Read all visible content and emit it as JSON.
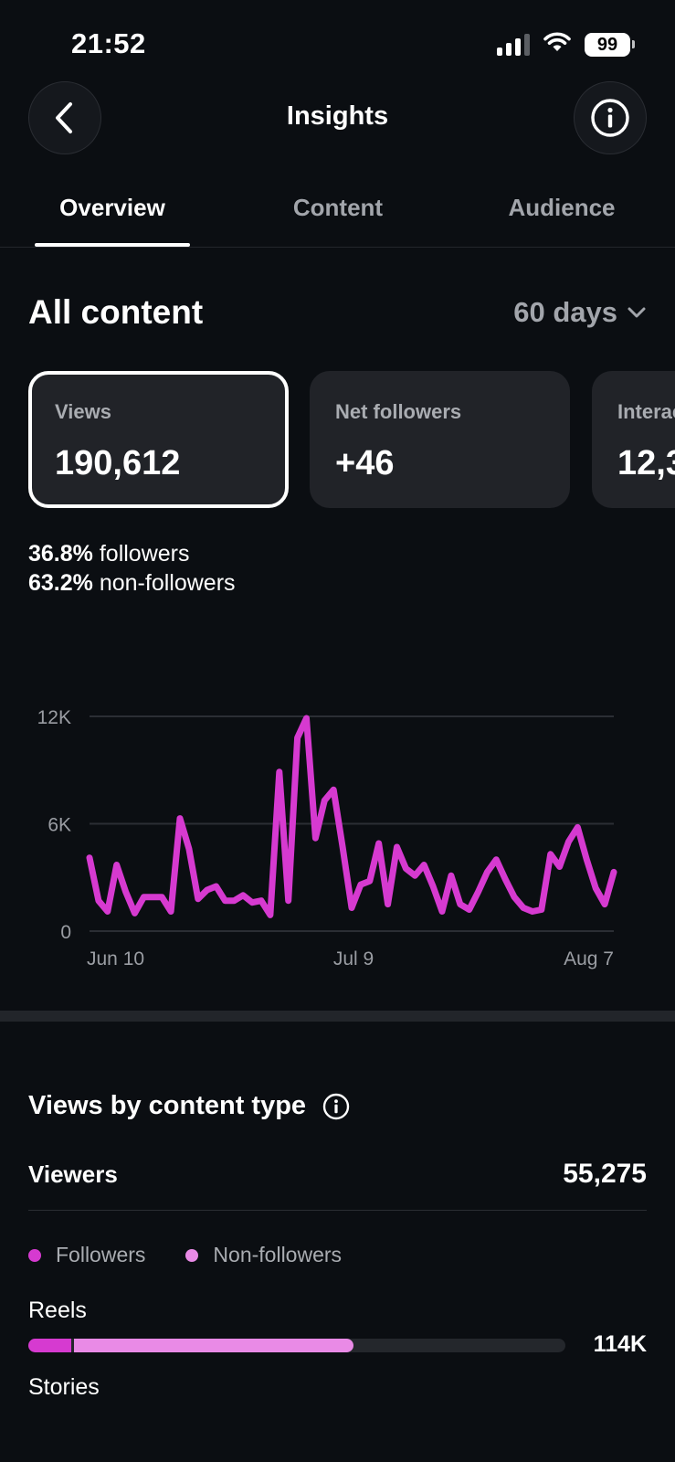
{
  "status_bar": {
    "time": "21:52",
    "battery": "99",
    "icons": [
      "signal-icon",
      "wifi-icon",
      "battery-icon"
    ]
  },
  "header": {
    "title": "Insights",
    "back_icon": "chevron-left-icon",
    "info_icon": "info-icon"
  },
  "tabs": [
    {
      "label": "Overview",
      "active": true
    },
    {
      "label": "Content",
      "active": false
    },
    {
      "label": "Audience",
      "active": false
    }
  ],
  "section": {
    "title": "All content",
    "range": "60 days"
  },
  "cards": [
    {
      "label": "Views",
      "value": "190,612",
      "selected": true
    },
    {
      "label": "Net followers",
      "value": "+46",
      "selected": false
    },
    {
      "label": "Interactions",
      "value": "12,3",
      "selected": false
    }
  ],
  "breakdown": {
    "followers_pct": "36.8%",
    "followers_label": "followers",
    "nonfollowers_pct": "63.2%",
    "nonfollowers_label": "non-followers"
  },
  "chart_data": {
    "type": "line",
    "x_labels": [
      "Jun 10",
      "Jul 9",
      "Aug 7"
    ],
    "y_ticks": [
      "12K",
      "6K",
      "0"
    ],
    "ylim": [
      0,
      12000
    ],
    "grid": true,
    "series": [
      {
        "color": "#d63ad0",
        "values": [
          4100,
          1700,
          1100,
          3700,
          2200,
          1000,
          1900,
          1900,
          1900,
          1100,
          6300,
          4600,
          1800,
          2300,
          2500,
          1700,
          1700,
          2000,
          1600,
          1700,
          900,
          8900,
          1700,
          10800,
          11900,
          5200,
          7300,
          7900,
          4700,
          1300,
          2600,
          2800,
          4900,
          1500,
          4700,
          3500,
          3100,
          3700,
          2500,
          1100,
          3100,
          1500,
          1200,
          2200,
          3300,
          4000,
          2900,
          1900,
          1300,
          1100,
          1200,
          4300,
          3600,
          5000,
          5800,
          4000,
          2400,
          1500,
          3300
        ]
      }
    ]
  },
  "content_type": {
    "title": "Views by content type",
    "viewers_label": "Viewers",
    "viewers_value": "55,275",
    "legend": [
      {
        "label": "Followers",
        "color": "#d63ad0"
      },
      {
        "label": "Non-followers",
        "color": "#e98ae6"
      }
    ],
    "rows": [
      {
        "label": "Reels",
        "value": "114K",
        "followers_fraction": 0.08,
        "nonfollowers_fraction": 0.52
      },
      {
        "label": "Stories"
      }
    ]
  }
}
